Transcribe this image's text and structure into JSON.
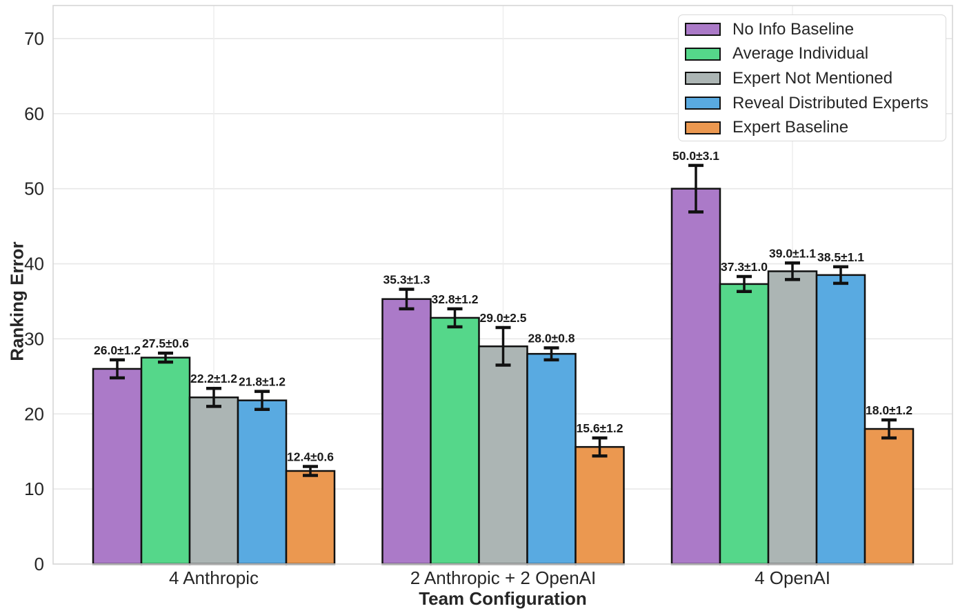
{
  "figure": {
    "background": "#ffffff",
    "text_color": "#262626",
    "grid_color": "#e7e7e7",
    "spine_color": "#d6d6d6",
    "bar_edge_color": "#111111",
    "error_bar_color": "#111111"
  },
  "chart_data": {
    "type": "bar",
    "title": "",
    "xlabel": "Team Configuration",
    "ylabel": "Ranking Error",
    "categories": [
      "4 Anthropic",
      "2 Anthropic + 2 OpenAI",
      "4 OpenAI"
    ],
    "yticks": [
      0,
      10,
      20,
      30,
      40,
      50,
      60,
      70
    ],
    "ylim": [
      0,
      74.4
    ],
    "grid": true,
    "legend_position": "upper right",
    "series": [
      {
        "name": "No Info Baseline",
        "color": "#ab7ac8",
        "values": [
          26.0,
          35.3,
          50.0
        ],
        "errors": [
          1.2,
          1.3,
          3.1
        ],
        "labels": [
          "26.0±1.2",
          "35.3±1.3",
          "50.0±3.1"
        ]
      },
      {
        "name": "Average Individual",
        "color": "#55d78a",
        "values": [
          27.5,
          32.8,
          37.3
        ],
        "errors": [
          0.6,
          1.2,
          1.0
        ],
        "labels": [
          "27.5±0.6",
          "32.8±1.2",
          "37.3±1.0"
        ]
      },
      {
        "name": "Expert Not Mentioned",
        "color": "#acb5b4",
        "values": [
          22.2,
          29.0,
          39.0
        ],
        "errors": [
          1.2,
          2.5,
          1.1
        ],
        "labels": [
          "22.2±1.2",
          "29.0±2.5",
          "39.0±1.1"
        ]
      },
      {
        "name": "Reveal Distributed Experts",
        "color": "#59aae1",
        "values": [
          21.8,
          28.0,
          38.5
        ],
        "errors": [
          1.2,
          0.8,
          1.1
        ],
        "labels": [
          "21.8±1.2",
          "28.0±0.8",
          "38.5±1.1"
        ]
      },
      {
        "name": "Expert Baseline",
        "color": "#eb9850",
        "values": [
          12.4,
          15.6,
          18.0
        ],
        "errors": [
          0.6,
          1.2,
          1.2
        ],
        "labels": [
          "12.4±0.6",
          "15.6±1.2",
          "18.0±1.2"
        ]
      }
    ]
  }
}
